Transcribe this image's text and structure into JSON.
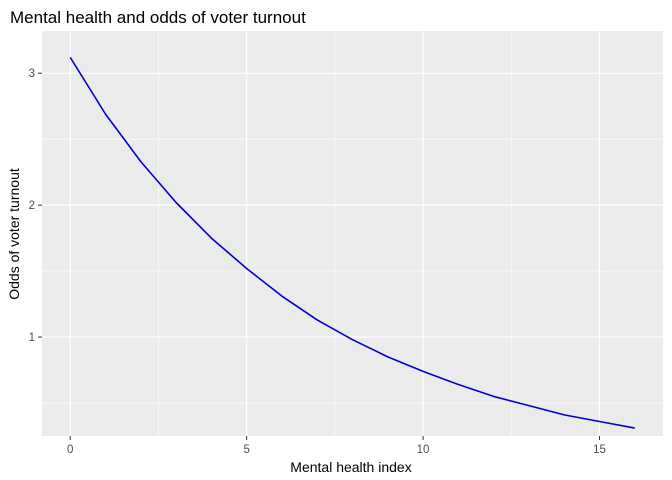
{
  "chart_data": {
    "type": "line",
    "title": "Mental health and odds of voter turnout",
    "xlabel": "Mental health index",
    "ylabel": "Odds of voter turnout",
    "xlim": [
      -0.8,
      16.8
    ],
    "ylim": [
      0.25,
      3.32
    ],
    "x_ticks": [
      0,
      5,
      10,
      15
    ],
    "y_ticks": [
      1,
      2,
      3
    ],
    "grid": true,
    "background": "#EBEBEB",
    "grid_color": "#FFFFFF",
    "line_color": "#0000CD",
    "series": [
      {
        "x": [
          0,
          1,
          2,
          3,
          4,
          5,
          6,
          7,
          8,
          9,
          10,
          11,
          12,
          13,
          14,
          15,
          16
        ],
        "values": [
          3.12,
          2.69,
          2.33,
          2.02,
          1.75,
          1.52,
          1.31,
          1.13,
          0.98,
          0.85,
          0.74,
          0.64,
          0.55,
          0.48,
          0.41,
          0.36,
          0.31
        ]
      }
    ]
  }
}
